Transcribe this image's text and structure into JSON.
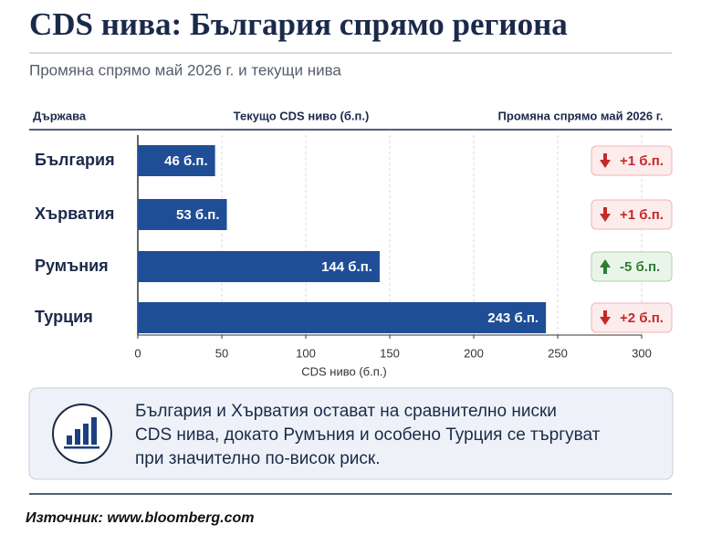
{
  "chart_data": {
    "type": "bar",
    "orientation": "horizontal",
    "title": "CDS нива: България спрямо региона",
    "subtitle": "Промяна спрямо май 2026 г. и текущи нива",
    "column_headers": [
      "Държава",
      "Текущо CDS ниво (б.п.)",
      "Промяна спрямо май 2026 г."
    ],
    "categories": [
      "България",
      "Хърватия",
      "Румъния",
      "Турция"
    ],
    "values": [
      46,
      53,
      144,
      243
    ],
    "value_labels": [
      "46 б.п.",
      "53 б.п.",
      "144 б.п.",
      "243 б.п."
    ],
    "color": "#1f4e96",
    "xlabel": "CDS ниво (б.п.)",
    "xlim": [
      0,
      300
    ],
    "xticks": [
      0,
      50,
      100,
      150,
      200,
      250,
      300
    ],
    "grid": true,
    "changes": {
      "values": [
        1,
        1,
        -5,
        2
      ],
      "labels": [
        "+1 б.п.",
        "+1 б.п.",
        "-5 б.п.",
        "+2 б.п."
      ],
      "up_color": "#c62828",
      "down_color": "#2e7d32"
    }
  },
  "note": [
    "България и Хърватия остават на сравнително ниски",
    "CDS нива, докато Румъния и особено Турция се търгуват",
    "при значително по-висок риск."
  ],
  "source": "Източник: www.bloomberg.com"
}
